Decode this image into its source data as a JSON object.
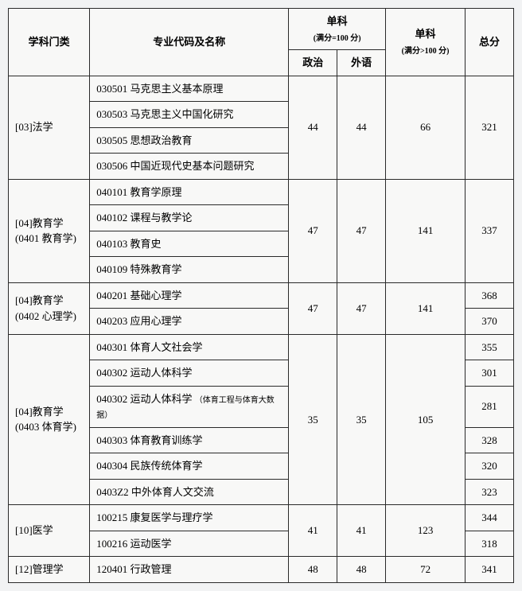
{
  "headers": {
    "category": "学科门类",
    "major": "专业代码及名称",
    "sub100_title": "单科",
    "sub100_note": "(满分=100 分)",
    "over100_title": "单科",
    "over100_note": "(满分>100 分)",
    "total": "总分",
    "politics": "政治",
    "foreign": "外语"
  },
  "rows": {
    "g0": {
      "cat": "[03]法学",
      "majors": [
        "030501 马克思主义基本原理",
        "030503 马克思主义中国化研究",
        "030505 思想政治教育",
        "030506 中国近现代史基本问题研究"
      ],
      "pol": "44",
      "for": "44",
      "sub2": "66",
      "total": "321"
    },
    "g1": {
      "cat_l1": "[04]教育学",
      "cat_l2": "(0401 教育学)",
      "majors": [
        "040101 教育学原理",
        "040102 课程与教学论",
        "040103 教育史",
        "040109 特殊教育学"
      ],
      "pol": "47",
      "for": "47",
      "sub2": "141",
      "total": "337"
    },
    "g2": {
      "cat_l1": "[04]教育学",
      "cat_l2": "(0402 心理学)",
      "majors": [
        "040201 基础心理学",
        "040203 应用心理学"
      ],
      "pol": "47",
      "for": "47",
      "sub2": "141",
      "totals": [
        "368",
        "370"
      ]
    },
    "g3": {
      "cat_l1": "[04]教育学",
      "cat_l2": "(0403 体育学)",
      "majors": [
        "040301 体育人文社会学",
        "040302 运动人体科学",
        "040302 运动人体科学",
        "040303 体育教育训练学",
        "040304 民族传统体育学",
        "0403Z2 中外体育人文交流"
      ],
      "major_note_2": "（体育工程与体育大数据）",
      "pol": "35",
      "for": "35",
      "sub2": "105",
      "totals": [
        "355",
        "301",
        "281",
        "328",
        "320",
        "323"
      ]
    },
    "g4": {
      "cat": "[10]医学",
      "majors": [
        "100215 康复医学与理疗学",
        "100216 运动医学"
      ],
      "pol": "41",
      "for": "41",
      "sub2": "123",
      "totals": [
        "344",
        "318"
      ]
    },
    "g5": {
      "cat": "[12]管理学",
      "majors": [
        "120401 行政管理"
      ],
      "pol": "48",
      "for": "48",
      "sub2": "72",
      "total": "341"
    }
  }
}
